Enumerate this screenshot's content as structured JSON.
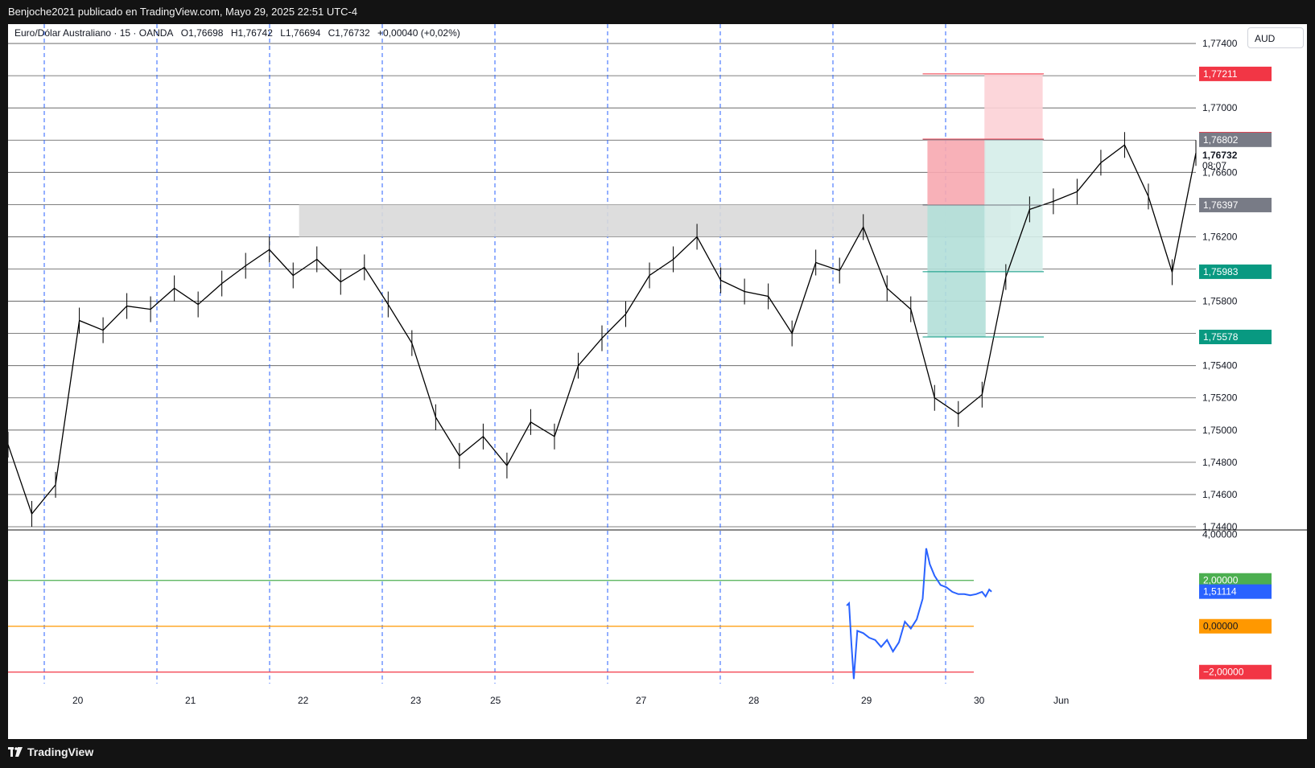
{
  "header": {
    "title": "Benjoche2021 publicado en TradingView.com, Mayo 29, 2025 22:51 UTC-4"
  },
  "legend": {
    "symbol": "Euro/Dólar Australiano · 15 · OANDA",
    "open": "O1,76698",
    "high": "H1,76742",
    "low": "L1,76694",
    "close": "C1,76732",
    "change": "+0,00040 (+0,02%)"
  },
  "currency_button": "AUD",
  "brand": "TradingView",
  "chart_data": [
    {
      "type": "line",
      "name": "price-pane",
      "description_series": "EUR/AUD 15-minute candlesticks (approximate close path)",
      "x_ticks": [
        "20",
        "21",
        "22",
        "23",
        "25",
        "27",
        "28",
        "29",
        "30",
        "Jun"
      ],
      "y_ticks": [
        "1,77400",
        "1,77000",
        "1,76600",
        "1,76200",
        "1,75800",
        "1,75400",
        "1,75200",
        "1,75000",
        "1,74800",
        "1,74600",
        "1,74400"
      ],
      "ylim": [
        1.7438,
        1.7752
      ],
      "grid": true,
      "series": [
        {
          "x": [
            0,
            2,
            4,
            6,
            8,
            10,
            12,
            14,
            16,
            18,
            20,
            22,
            24,
            26,
            28,
            30,
            32,
            34,
            36,
            38,
            40,
            42,
            44,
            46,
            48,
            50,
            52,
            54,
            56,
            58,
            60,
            62,
            64,
            66,
            68,
            70,
            72,
            74,
            76,
            78,
            80,
            82,
            84,
            86,
            88,
            90,
            92,
            94,
            96,
            98,
            100
          ],
          "values": [
            1.7491,
            1.7448,
            1.7466,
            1.7568,
            1.7562,
            1.7577,
            1.7575,
            1.7588,
            1.7578,
            1.7591,
            1.7602,
            1.7612,
            1.7596,
            1.7606,
            1.7592,
            1.7601,
            1.7578,
            1.7554,
            1.7508,
            1.7484,
            1.7496,
            1.7478,
            1.7505,
            1.7496,
            1.754,
            1.7557,
            1.7572,
            1.7596,
            1.7606,
            1.762,
            1.7593,
            1.7586,
            1.7583,
            1.756,
            1.7604,
            1.7599,
            1.7626,
            1.7588,
            1.7575,
            1.752,
            1.751,
            1.7522,
            1.7595,
            1.7637,
            1.7642,
            1.7648,
            1.7666,
            1.7677,
            1.7645,
            1.7598,
            1.7672
          ]
        }
      ],
      "levels": [
        {
          "label": "1,77211",
          "value": 1.77211,
          "color": "#f23645"
        },
        {
          "label": "1,76806",
          "value": 1.76806,
          "color": "#f23645"
        },
        {
          "label": "1,76802",
          "value": 1.76802,
          "color": "#787b86"
        },
        {
          "label": "1,76397",
          "value": 1.76397,
          "color": "#787b86"
        },
        {
          "label": "1,75983",
          "value": 1.75983,
          "color": "#089981"
        },
        {
          "label": "1,75578",
          "value": 1.75578,
          "color": "#089981"
        }
      ],
      "last_price": {
        "label": "1,76732",
        "countdown": "08:07"
      },
      "zones": [
        {
          "name": "supply-zone",
          "from_x": 24.5,
          "to_x": 84.4,
          "y_low": 1.762,
          "y_high": 1.764,
          "color": "#d9d9d9"
        },
        {
          "name": "position-1-stop",
          "from_x": 77.4,
          "to_x": 82.3,
          "y_low": 1.76397,
          "y_high": 1.76806,
          "color": "#f7a8b0"
        },
        {
          "name": "position-1-target",
          "from_x": 77.4,
          "to_x": 82.3,
          "y_low": 1.75578,
          "y_high": 1.76397,
          "color": "#b2dfd8"
        },
        {
          "name": "position-2-stop",
          "from_x": 82.2,
          "to_x": 87.1,
          "y_low": 1.76802,
          "y_high": 1.77211,
          "color": "#fcd1d6"
        },
        {
          "name": "position-2-target",
          "from_x": 82.2,
          "to_x": 87.1,
          "y_low": 1.75983,
          "y_high": 1.76802,
          "color": "#d5ede9"
        }
      ]
    },
    {
      "type": "line",
      "name": "oscillator-pane",
      "y_ticks": [
        "4,00000"
      ],
      "ylim": [
        -2.5,
        4.2
      ],
      "levels": [
        {
          "label": "2,00000",
          "value": 2.0,
          "color": "#4caf50"
        },
        {
          "label": "1,51114",
          "value": 1.51114,
          "color": "#2962ff"
        },
        {
          "label": "0,00000",
          "value": 0.0,
          "color": "#ff9800"
        },
        {
          "label": "−2,00000",
          "value": -2.0,
          "color": "#f23645"
        }
      ],
      "series": [
        {
          "color": "#2962ff",
          "x": [
            70.6,
            70.8,
            71.0,
            71.2,
            71.5,
            72.0,
            72.5,
            73.0,
            73.5,
            74.0,
            74.5,
            75.0,
            75.5,
            76.0,
            76.5,
            77.0,
            77.3,
            77.6,
            78.0,
            78.5,
            79.0,
            79.5,
            80.0,
            80.5,
            81.0,
            81.5,
            82.0,
            82.3,
            82.6,
            82.8
          ],
          "values": [
            0.9,
            1.0,
            -0.8,
            -2.3,
            -0.2,
            -0.3,
            -0.5,
            -0.6,
            -0.9,
            -0.6,
            -1.1,
            -0.7,
            0.2,
            -0.1,
            0.3,
            1.2,
            3.4,
            2.7,
            2.2,
            1.8,
            1.7,
            1.5,
            1.4,
            1.4,
            1.35,
            1.4,
            1.5,
            1.3,
            1.6,
            1.51
          ]
        }
      ]
    }
  ]
}
